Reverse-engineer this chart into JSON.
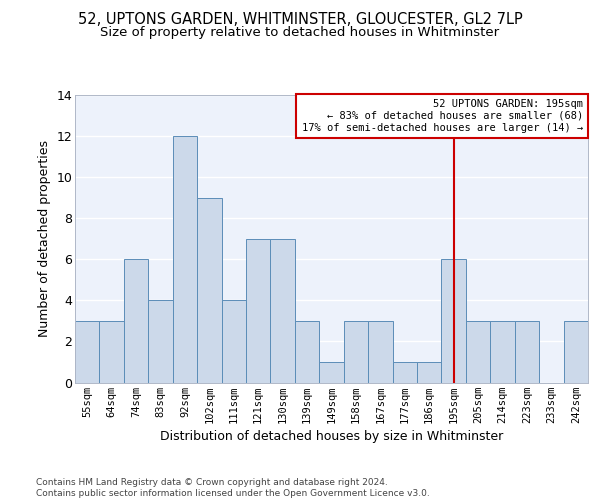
{
  "title1": "52, UPTONS GARDEN, WHITMINSTER, GLOUCESTER, GL2 7LP",
  "title2": "Size of property relative to detached houses in Whitminster",
  "xlabel": "Distribution of detached houses by size in Whitminster",
  "ylabel": "Number of detached properties",
  "categories": [
    "55sqm",
    "64sqm",
    "74sqm",
    "83sqm",
    "92sqm",
    "102sqm",
    "111sqm",
    "121sqm",
    "130sqm",
    "139sqm",
    "149sqm",
    "158sqm",
    "167sqm",
    "177sqm",
    "186sqm",
    "195sqm",
    "205sqm",
    "214sqm",
    "223sqm",
    "233sqm",
    "242sqm"
  ],
  "values": [
    3,
    3,
    6,
    4,
    12,
    9,
    4,
    7,
    7,
    3,
    1,
    3,
    3,
    1,
    1,
    6,
    3,
    3,
    3,
    0,
    3
  ],
  "bar_color": "#ccd9ea",
  "bar_edge_color": "#5b8db8",
  "background_color": "#edf2fb",
  "grid_color": "#ffffff",
  "annotation_line1": "52 UPTONS GARDEN: 195sqm",
  "annotation_line2": "← 83% of detached houses are smaller (68)",
  "annotation_line3": "17% of semi-detached houses are larger (14) →",
  "annotation_box_edge": "#cc0000",
  "vline_x_index": 15,
  "ylim": [
    0,
    14
  ],
  "yticks": [
    0,
    2,
    4,
    6,
    8,
    10,
    12,
    14
  ],
  "footer_line1": "Contains HM Land Registry data © Crown copyright and database right 2024.",
  "footer_line2": "Contains public sector information licensed under the Open Government Licence v3.0.",
  "title1_fontsize": 10.5,
  "title2_fontsize": 9.5,
  "xlabel_fontsize": 9,
  "ylabel_fontsize": 9,
  "tick_fontsize": 7.5,
  "ytick_fontsize": 9,
  "annotation_fontsize": 7.5,
  "footer_fontsize": 6.5
}
